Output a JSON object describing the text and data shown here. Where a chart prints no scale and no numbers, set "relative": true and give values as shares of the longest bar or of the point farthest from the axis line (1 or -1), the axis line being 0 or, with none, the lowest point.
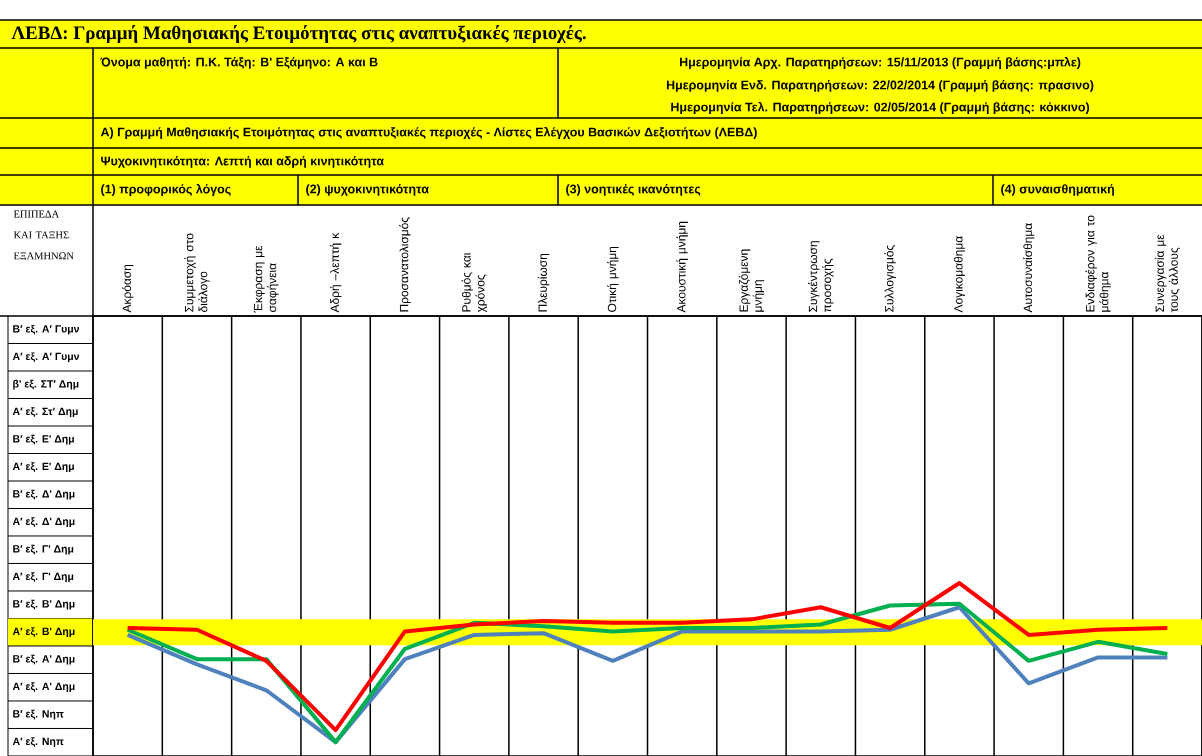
{
  "chart_data": {
    "type": "line",
    "title": "ΛΕΒΔ: Γραμμή Μαθησιακής Ετοιμότητας στις αναπτυξιακές περιοχές.",
    "ylabel": "ΕΠΙΠΕΔΑ ΚΑΙ ΤΑΞΗΣ ΕΞΑΜΗΝΩΝ",
    "annotations": [
      "Όνομα μαθητή: Π.Κ.  Τάξη: Β' Εξάμηνο: Α και Β",
      "Ημερομηνία Αρχ. Παρατηρήσεων: 15/11/2013 (Γραμμή βάσης:μπλε)",
      "Ημερομηνία Ενδ. Παρατηρήσεων: 22/02/2014 (Γραμμή βάσης: πρασινο)",
      "Ημερομηνία Τελ. Παρατηρήσεων: 02/05/2014 (Γραμμή βάσης: κόκκινο)",
      "Α) Γραμμή Μαθησιακής Ετοιμότητας στις αναπτυξιακές περιοχές - Λίστες Ελέγχου Βασικών Δεξιοτήτων (ΛΕΒΔ)",
      "Ψυχοκινητικότητα: Λεπτή και αδρή κινητικότητα",
      "(1) προφορικός λόγος",
      "(2) ψυχοκινητικότητα",
      "(3) νοητικές ικανότητες",
      "(4) συναισθηματική",
      "Β′ εξ. Α′ Γυμν",
      "Α′ εξ. Α′ Γυμν",
      "β' εξ. ΣΤ′ Δημ",
      "Α′ εξ. Στ′ Δημ",
      "Β′ εξ. Ε' Δημ",
      "Α′ εξ. Ε' Δημ",
      "Β′ εξ. Δ' Δημ",
      "Α′ εξ. Δ' Δημ",
      "Β′ εξ. Γ' Δημ",
      "Α′ εξ. Γ' Δημ",
      "Β′ εξ. Β' Δημ",
      "Α′ εξ. Β' Δημ",
      "Β′ εξ. Α' Δημ",
      "Α′ εξ. Α' Δημ",
      "Β′ εξ. Νηπ",
      "Α′ εξ. Νηπ"
    ],
    "categories": [
      "Ακρόαση",
      "Συμμετοχή στο διάλογο",
      "Έκφραση με σαφήνεια",
      "Αδρή –λεπτή κ",
      "Προσανατολισμός",
      "Ρυθμός και χρόνος",
      "Πλευρίωση",
      "Οτική μνήμη",
      "Ακουστική μνήμη",
      "Εργαζόμενη μνήμη",
      "Συγκέντρωση προσοχής",
      "Συλλογισμός",
      "Λογικομαθημα",
      "Αυτοσυναίσθημα",
      "Ενδιαφέρον για το μάθημα",
      "Συνεργασία με τους άλλους"
    ],
    "relative": true,
    "series": [
      {
        "color": "#4f81bd",
        "values": [
          0.7,
          0.53,
          0.38,
          0.08,
          0.56,
          0.7,
          0.71,
          0.55,
          0.72,
          0.72,
          0.72,
          0.73,
          0.86,
          0.42,
          0.57,
          0.57
        ]
      },
      {
        "color": "#00b050",
        "values": [
          0.73,
          0.56,
          0.56,
          0.08,
          0.62,
          0.77,
          0.75,
          0.72,
          0.74,
          0.74,
          0.76,
          0.87,
          0.88,
          0.55,
          0.66,
          0.59
        ]
      },
      {
        "color": "#ff0000",
        "values": [
          0.74,
          0.73,
          0.55,
          0.15,
          0.72,
          0.76,
          0.78,
          0.77,
          0.77,
          0.79,
          0.86,
          0.74,
          1.0,
          0.7,
          0.73,
          0.74
        ]
      }
    ],
    "bands": [
      {
        "axis": "y",
        "from": 0.64,
        "to": 0.79,
        "color": "#ffff00"
      }
    ],
    "grid": true
  }
}
